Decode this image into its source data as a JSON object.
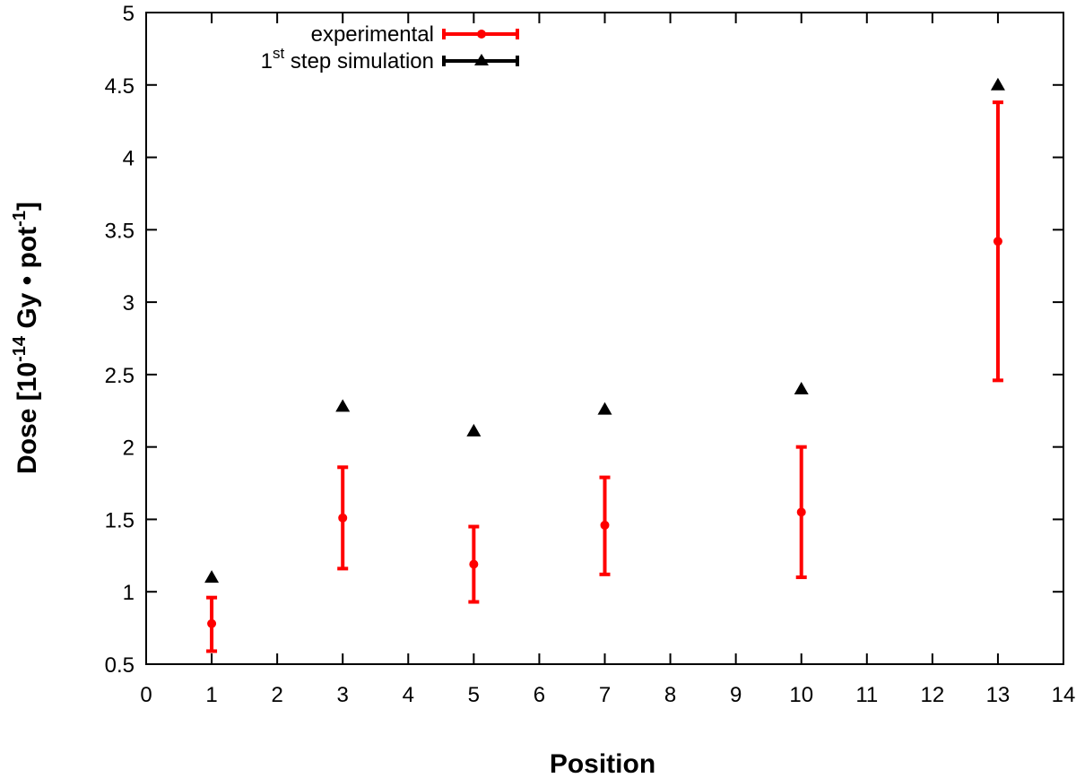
{
  "chart_data": {
    "type": "scatter",
    "xlabel": "Position",
    "ylabel": {
      "prefix": "Dose [10",
      "exp1": "-14",
      "middle": " Gy • pot",
      "exp2": "-1",
      "suffix": "]"
    },
    "xlim": [
      0,
      14
    ],
    "ylim": [
      0.5,
      5
    ],
    "xticks": [
      0,
      1,
      2,
      3,
      4,
      5,
      6,
      7,
      8,
      9,
      10,
      11,
      12,
      13,
      14
    ],
    "yticks": [
      0.5,
      1,
      1.5,
      2,
      2.5,
      3,
      3.5,
      4,
      4.5,
      5
    ],
    "ytick_labels": [
      "0.5",
      "1",
      "1.5",
      "2",
      "2.5",
      "3",
      "3.5",
      "4",
      "4.5",
      "5"
    ],
    "grid": false,
    "legend_position": "top-left",
    "series": [
      {
        "name": "experimental",
        "marker": "circle",
        "color": "#ff0000",
        "points": [
          {
            "x": 1,
            "y": 0.78,
            "ylow": 0.59,
            "yhigh": 0.96
          },
          {
            "x": 3,
            "y": 1.51,
            "ylow": 1.16,
            "yhigh": 1.86
          },
          {
            "x": 5,
            "y": 1.19,
            "ylow": 0.93,
            "yhigh": 1.45
          },
          {
            "x": 7,
            "y": 1.46,
            "ylow": 1.12,
            "yhigh": 1.79
          },
          {
            "x": 10,
            "y": 1.55,
            "ylow": 1.1,
            "yhigh": 2.0
          },
          {
            "x": 13,
            "y": 3.42,
            "ylow": 2.46,
            "yhigh": 4.38
          }
        ]
      },
      {
        "name_parts": {
          "pre": "1",
          "sup": "st",
          "post": " step simulation"
        },
        "marker": "triangle",
        "color": "#000000",
        "points": [
          {
            "x": 1,
            "y": 1.1
          },
          {
            "x": 3,
            "y": 2.28
          },
          {
            "x": 5,
            "y": 2.11
          },
          {
            "x": 7,
            "y": 2.26
          },
          {
            "x": 10,
            "y": 2.4
          },
          {
            "x": 13,
            "y": 4.5
          }
        ]
      }
    ]
  }
}
